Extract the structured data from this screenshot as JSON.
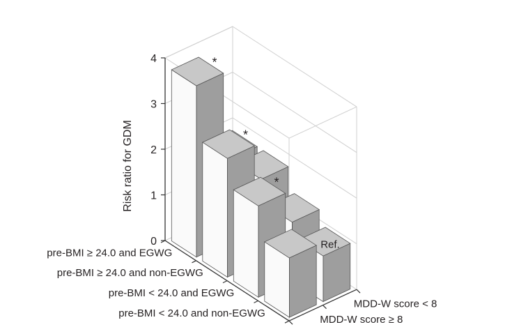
{
  "chart_data": {
    "type": "bar3d",
    "title": "",
    "zlabel": "Risk ratio for GDM",
    "zlim": [
      0,
      4
    ],
    "z_ticks": [
      "0",
      "1",
      "2",
      "3",
      "4"
    ],
    "row_categories": [
      "pre-BMI ≥ 24.0 and EGWG",
      "pre-BMI ≥ 24.0 and non-EGWG",
      "pre-BMI < 24.0 and EGWG",
      "pre-BMI < 24.0 and non-EGWG"
    ],
    "col_categories": [
      "MDD-W score < 8",
      "MDD-W score ≥ 8"
    ],
    "values": [
      [
        3.75,
        1.8
      ],
      [
        2.6,
        1.8
      ],
      [
        2.0,
        1.3
      ],
      [
        1.3,
        1.0
      ]
    ],
    "markers": [
      [
        "*",
        ""
      ],
      [
        "*",
        ""
      ],
      [
        "*",
        ""
      ],
      [
        "",
        "Ref."
      ]
    ],
    "grid": true,
    "legend": "none"
  },
  "colors": {
    "bar_front": "#fafafa",
    "bar_side": "#9e9e9e",
    "bar_top": "#c8c8c8",
    "bar_edge": "#555555",
    "axis": "#333333",
    "grid": "#cfcfcf",
    "text": "#231f20"
  }
}
